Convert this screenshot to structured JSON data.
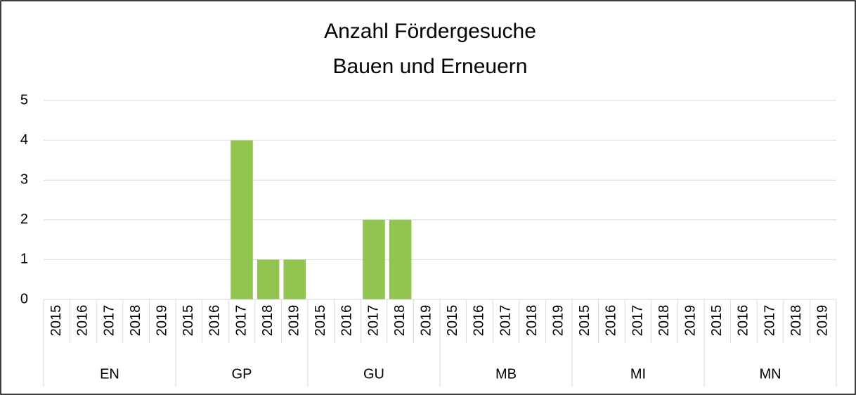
{
  "chart_data": {
    "type": "bar",
    "title": [
      "Anzahl Fördergesuche",
      "Bauen und Erneuern"
    ],
    "groups": [
      "EN",
      "GP",
      "GU",
      "MB",
      "MI",
      "MN"
    ],
    "categories": [
      "2015",
      "2016",
      "2017",
      "2018",
      "2019",
      "2015",
      "2016",
      "2017",
      "2018",
      "2019",
      "2015",
      "2016",
      "2017",
      "2018",
      "2019",
      "2015",
      "2016",
      "2017",
      "2018",
      "2019",
      "2015",
      "2016",
      "2017",
      "2018",
      "2019",
      "2015",
      "2016",
      "2017",
      "2018",
      "2019"
    ],
    "values": [
      0,
      0,
      0,
      0,
      0,
      0,
      0,
      4,
      1,
      1,
      0,
      0,
      2,
      2,
      0,
      0,
      0,
      0,
      0,
      0,
      0,
      0,
      0,
      0,
      0,
      0,
      0,
      0,
      0,
      0
    ],
    "color": "#92c550",
    "ylim": [
      0,
      5
    ],
    "yticks": [
      0,
      1,
      2,
      3,
      4,
      5
    ],
    "grid": true
  }
}
